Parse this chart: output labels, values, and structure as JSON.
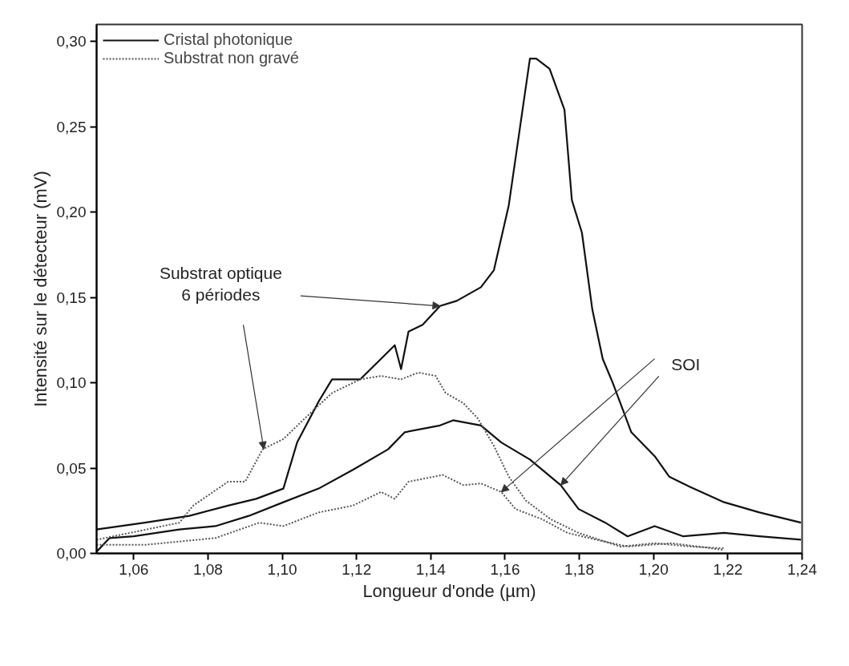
{
  "chart_data": {
    "type": "line",
    "xlabel": "Longueur d'onde (µm)",
    "ylabel": "Intensité sur le détecteur (mV)",
    "xlim": [
      1.05,
      1.24
    ],
    "ylim": [
      0,
      0.31
    ],
    "xticks": [
      {
        "value": 1.06,
        "label": "1,06"
      },
      {
        "value": 1.08,
        "label": "1,08"
      },
      {
        "value": 1.1,
        "label": "1,10"
      },
      {
        "value": 1.12,
        "label": "1,12"
      },
      {
        "value": 1.14,
        "label": "1,14"
      },
      {
        "value": 1.16,
        "label": "1,16"
      },
      {
        "value": 1.18,
        "label": "1,18"
      },
      {
        "value": 1.2,
        "label": "1,20"
      },
      {
        "value": 1.22,
        "label": "1,22"
      },
      {
        "value": 1.24,
        "label": "1,24"
      }
    ],
    "yticks": [
      {
        "value": 0,
        "label": "0,00"
      },
      {
        "value": 0.05,
        "label": "0,05"
      },
      {
        "value": 0.1,
        "label": "0,10"
      },
      {
        "value": 0.15,
        "label": "0,15"
      },
      {
        "value": 0.2,
        "label": "0,20"
      },
      {
        "value": 0.25,
        "label": "0,25"
      },
      {
        "value": 0.3,
        "label": "0,30"
      }
    ],
    "grid": false,
    "legend": "top left",
    "marker": "none",
    "series": [
      {
        "name": "Cristal photonique",
        "color": "#111111",
        "line_style": "solid",
        "x": [
          1.05,
          1.063,
          1.075,
          1.0854,
          1.093,
          1.1003,
          1.104,
          1.1098,
          1.1134,
          1.121,
          1.1266,
          1.1303,
          1.132,
          1.134,
          1.1378,
          1.1425,
          1.147,
          1.1535,
          1.157,
          1.161,
          1.1667,
          1.1684,
          1.172,
          1.176,
          1.178,
          1.1807,
          1.1835,
          1.1863,
          1.189,
          1.194,
          1.2003,
          1.2042,
          1.2098,
          1.219,
          1.2285,
          1.2397
        ],
        "values": [
          0.014,
          0.018,
          0.022,
          0.028,
          0.032,
          0.038,
          0.065,
          0.089,
          0.102,
          0.102,
          0.114,
          0.122,
          0.108,
          0.13,
          0.134,
          0.145,
          0.148,
          0.156,
          0.166,
          0.204,
          0.29,
          0.29,
          0.284,
          0.26,
          0.207,
          0.188,
          0.143,
          0.114,
          0.1,
          0.071,
          0.057,
          0.045,
          0.039,
          0.03,
          0.024,
          0.018
        ]
      },
      {
        "color": "#111111",
        "line_style": "solid",
        "x": [
          1.05,
          1.0535,
          1.06,
          1.0723,
          1.082,
          1.091,
          1.1003,
          1.1098,
          1.119,
          1.1285,
          1.133,
          1.1425,
          1.146,
          1.1535,
          1.159,
          1.1667,
          1.175,
          1.1798,
          1.187,
          1.193,
          1.2003,
          1.208,
          1.219,
          1.2285,
          1.2397
        ],
        "values": [
          0.001,
          0.009,
          0.01,
          0.014,
          0.016,
          0.022,
          0.03,
          0.038,
          0.049,
          0.061,
          0.071,
          0.075,
          0.078,
          0.075,
          0.065,
          0.055,
          0.04,
          0.026,
          0.018,
          0.01,
          0.016,
          0.01,
          0.012,
          0.01,
          0.008
        ]
      },
      {
        "name": "Substrat non gravé",
        "color": "#555555",
        "line_style": "dotted",
        "x": [
          1.05,
          1.0723,
          1.076,
          1.0854,
          1.09,
          1.0947,
          1.1003,
          1.106,
          1.1134,
          1.121,
          1.1266,
          1.132,
          1.1367,
          1.1413,
          1.144,
          1.1488,
          1.1527,
          1.157,
          1.161,
          1.1656,
          1.1723,
          1.1798,
          1.191,
          1.2003,
          1.2098,
          1.219
        ],
        "values": [
          0.008,
          0.018,
          0.028,
          0.042,
          0.042,
          0.061,
          0.067,
          0.079,
          0.094,
          0.102,
          0.104,
          0.102,
          0.106,
          0.104,
          0.094,
          0.088,
          0.079,
          0.063,
          0.045,
          0.031,
          0.02,
          0.012,
          0.004,
          0.006,
          0.004,
          0.003
        ]
      },
      {
        "color": "#555555",
        "line_style": "dotted",
        "x": [
          1.05,
          1.063,
          1.082,
          1.0938,
          1.1003,
          1.1098,
          1.119,
          1.1266,
          1.1303,
          1.134,
          1.1432,
          1.1488,
          1.1535,
          1.159,
          1.1628,
          1.17,
          1.1768,
          1.1846,
          1.193,
          1.205,
          1.219
        ],
        "values": [
          0.005,
          0.005,
          0.009,
          0.018,
          0.016,
          0.024,
          0.028,
          0.036,
          0.032,
          0.042,
          0.046,
          0.04,
          0.041,
          0.036,
          0.026,
          0.02,
          0.012,
          0.008,
          0.004,
          0.006,
          0.002
        ]
      }
    ],
    "annotations": [
      {
        "text": "Substrat optique\n6 périodes",
        "x": 1.1425,
        "y": 0.145
      },
      {
        "text": "SOI",
        "x": 1.159,
        "y": 0.036
      }
    ]
  }
}
